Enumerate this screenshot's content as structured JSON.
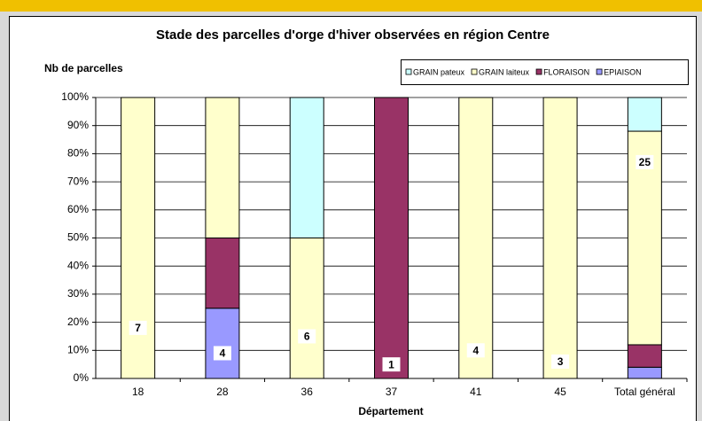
{
  "chart_data": {
    "type": "stacked_bar_100",
    "title": "Stade des parcelles d'orge d'hiver observées en région Centre",
    "y_label": "Nb de parcelles",
    "x_label": "Département",
    "categories": [
      "18",
      "28",
      "36",
      "37",
      "41",
      "45",
      "Total général"
    ],
    "series": [
      {
        "name": "GRAIN pateux",
        "color": "#ccffff",
        "values": [
          null,
          null,
          50,
          null,
          null,
          null,
          12
        ]
      },
      {
        "name": "GRAIN laiteux",
        "color": "#ffffcc",
        "values": [
          100,
          50,
          50,
          null,
          100,
          100,
          76
        ]
      },
      {
        "name": "FLORAISON",
        "color": "#993366",
        "values": [
          null,
          25,
          null,
          100,
          null,
          null,
          8
        ]
      },
      {
        "name": "EPIAISON",
        "color": "#9999ff",
        "values": [
          null,
          25,
          null,
          null,
          null,
          null,
          4
        ]
      }
    ],
    "counts": [
      7,
      4,
      6,
      1,
      4,
      3,
      25
    ],
    "ylim": [
      0,
      100
    ],
    "yticks": [
      {
        "value": 0,
        "label": "0%"
      },
      {
        "value": 10,
        "label": "10%"
      },
      {
        "value": 20,
        "label": "20%"
      },
      {
        "value": 30,
        "label": "30%"
      },
      {
        "value": 40,
        "label": "40%"
      },
      {
        "value": 50,
        "label": "50%"
      },
      {
        "value": 60,
        "label": "60%"
      },
      {
        "value": 70,
        "label": "70%"
      },
      {
        "value": 80,
        "label": "80%"
      },
      {
        "value": 90,
        "label": "90%"
      },
      {
        "value": 100,
        "label": "100%"
      }
    ],
    "grid": true
  }
}
